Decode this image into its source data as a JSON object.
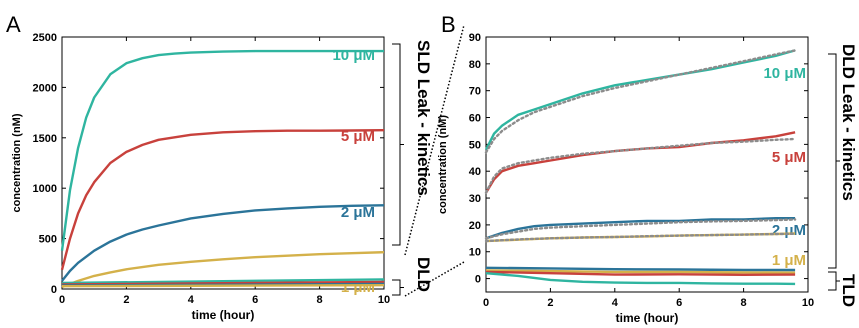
{
  "chart_data": [
    {
      "type": "line",
      "panel_label": "A",
      "xlabel": "time (hour)",
      "ylabel": "concentration (nM)",
      "xlim": [
        0,
        10
      ],
      "ylim": [
        0,
        2500
      ],
      "xticks": [
        "0",
        "2",
        "4",
        "6",
        "8",
        "10"
      ],
      "yticks": [
        "0",
        "500",
        "1000",
        "1500",
        "2000",
        "2500"
      ],
      "grid": false,
      "side_labels": [
        "SLD Leak - kinetics",
        "DLD"
      ],
      "series": [
        {
          "name": "10 μM",
          "color": "#2fb5a0",
          "x": [
            0,
            0.25,
            0.5,
            0.75,
            1,
            1.5,
            2,
            2.5,
            3,
            3.5,
            4,
            5,
            6,
            7,
            8,
            9,
            10
          ],
          "y": [
            380,
            980,
            1400,
            1700,
            1900,
            2130,
            2240,
            2290,
            2320,
            2335,
            2345,
            2355,
            2360,
            2360,
            2360,
            2360,
            2360
          ]
        },
        {
          "name": "5 μM",
          "color": "#c8413c",
          "x": [
            0,
            0.25,
            0.5,
            0.75,
            1,
            1.5,
            2,
            2.5,
            3,
            4,
            5,
            6,
            7,
            8,
            9,
            10
          ],
          "y": [
            190,
            500,
            750,
            930,
            1060,
            1250,
            1360,
            1430,
            1480,
            1530,
            1555,
            1565,
            1570,
            1570,
            1572,
            1575
          ]
        },
        {
          "name": "2 μM",
          "color": "#2b7499",
          "x": [
            0,
            0.25,
            0.5,
            1,
            1.5,
            2,
            2.5,
            3,
            4,
            5,
            6,
            7,
            8,
            9,
            10
          ],
          "y": [
            80,
            180,
            260,
            380,
            470,
            540,
            590,
            630,
            700,
            745,
            780,
            800,
            815,
            825,
            830
          ]
        },
        {
          "name": "1 μM",
          "color": "#d4b14a",
          "x": [
            0,
            0.5,
            1,
            1.5,
            2,
            3,
            4,
            5,
            6,
            7,
            8,
            9,
            10
          ],
          "y": [
            20,
            80,
            130,
            165,
            195,
            240,
            270,
            295,
            315,
            330,
            345,
            355,
            365
          ]
        },
        {
          "name": "",
          "color": "#2fb5a0",
          "x": [
            0,
            10
          ],
          "y": [
            60,
            95
          ]
        },
        {
          "name": "",
          "color": "#c8413c",
          "x": [
            0,
            10
          ],
          "y": [
            45,
            70
          ]
        },
        {
          "name": "",
          "color": "#2b7499",
          "x": [
            0,
            10
          ],
          "y": [
            35,
            50
          ]
        },
        {
          "name": "",
          "color": "#d4b14a",
          "x": [
            0,
            10
          ],
          "y": [
            28,
            38
          ]
        }
      ]
    },
    {
      "type": "line",
      "panel_label": "B",
      "xlabel": "time (hour)",
      "ylabel": "concentration (nM)",
      "xlim": [
        0,
        10
      ],
      "ylim": [
        -5,
        90
      ],
      "xticks": [
        "0",
        "2",
        "4",
        "6",
        "8",
        "10"
      ],
      "yticks": [
        "0",
        "10",
        "20",
        "30",
        "40",
        "50",
        "60",
        "70",
        "80",
        "90"
      ],
      "grid": false,
      "side_labels": [
        "DLD Leak - kinetics",
        "TLD"
      ],
      "fit_color": "#8c8c8c",
      "series": [
        {
          "name": "10 μM",
          "color": "#2fb5a0",
          "x": [
            0,
            0.25,
            0.5,
            1,
            1.5,
            2,
            3,
            4,
            5,
            6,
            7,
            8,
            9,
            9.6
          ],
          "y": [
            48,
            54,
            57,
            61,
            63,
            65,
            69,
            72,
            74,
            76,
            78,
            80.5,
            83,
            85
          ],
          "fit": [
            47,
            52,
            55,
            59,
            62,
            64,
            68,
            71,
            73.5,
            76,
            78.5,
            81,
            83.5,
            85
          ]
        },
        {
          "name": "5 μM",
          "color": "#c8413c",
          "x": [
            0,
            0.25,
            0.5,
            1,
            1.5,
            2,
            3,
            4,
            5,
            6,
            7,
            8,
            9,
            9.6
          ],
          "y": [
            32,
            37,
            40,
            42,
            43,
            44,
            46,
            47.5,
            48.5,
            49,
            50.5,
            51.5,
            53,
            54.5
          ],
          "fit": [
            32,
            38,
            41,
            43,
            44,
            45,
            46.5,
            47.5,
            48.5,
            49.5,
            50.5,
            51,
            51.7,
            52
          ]
        },
        {
          "name": "2 μM",
          "color": "#2b7499",
          "x": [
            0,
            0.5,
            1,
            1.5,
            2,
            3,
            4,
            5,
            6,
            7,
            8,
            9,
            9.6
          ],
          "y": [
            15,
            17,
            18.5,
            19.5,
            20,
            20.5,
            21,
            21.5,
            21.5,
            22,
            22,
            22.5,
            22.5
          ],
          "fit": [
            15,
            16.5,
            17.5,
            18.5,
            19,
            19.5,
            20,
            20.5,
            21,
            21.3,
            21.5,
            21.8,
            22
          ]
        },
        {
          "name": "1 μM",
          "color": "#d4b14a",
          "x": [
            0,
            1,
            2,
            3,
            4,
            5,
            6,
            7,
            8,
            9,
            9.6
          ],
          "y": [
            14,
            14.5,
            15,
            15.3,
            15.5,
            15.7,
            16,
            16.2,
            16.4,
            16.6,
            16.8
          ],
          "fit": [
            14,
            14.6,
            15,
            15.3,
            15.5,
            15.8,
            16,
            16.2,
            16.4,
            16.6,
            16.7
          ]
        },
        {
          "name": "",
          "color": "#2b7499",
          "x": [
            0,
            2,
            4,
            6,
            8,
            9.6
          ],
          "y": [
            4,
            3.8,
            3.5,
            3.4,
            3.2,
            3.2
          ]
        },
        {
          "name": "",
          "color": "#d4b14a",
          "x": [
            0,
            2,
            4,
            6,
            8,
            9.6
          ],
          "y": [
            3,
            2.8,
            2.5,
            2.5,
            2.3,
            2.2
          ]
        },
        {
          "name": "",
          "color": "#c8413c",
          "x": [
            0,
            2,
            4,
            6,
            8,
            9.6
          ],
          "y": [
            2.5,
            2,
            1.5,
            1.6,
            1.4,
            1.5
          ]
        },
        {
          "name": "",
          "color": "#2fb5a0",
          "x": [
            0,
            0.5,
            1,
            2,
            3,
            4,
            5,
            6,
            7,
            8,
            9,
            9.6
          ],
          "y": [
            2,
            1.5,
            1,
            -0.5,
            -1.2,
            -1.5,
            -1.6,
            -1.6,
            -1.8,
            -1.9,
            -1.9,
            -2
          ]
        }
      ]
    }
  ]
}
